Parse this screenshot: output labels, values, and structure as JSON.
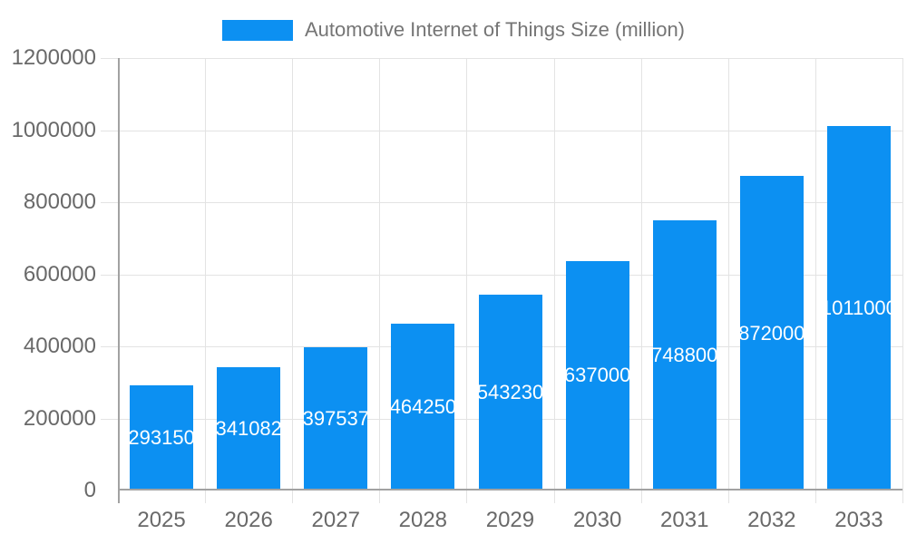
{
  "legend": {
    "label": "Automotive Internet of Things Size (million)"
  },
  "chart_data": {
    "type": "bar",
    "title": "Automotive Internet of Things Size (million)",
    "categories": [
      "2025",
      "2026",
      "2027",
      "2028",
      "2029",
      "2030",
      "2031",
      "2032",
      "2033"
    ],
    "series": [
      {
        "name": "Automotive Internet of Things Size (million)",
        "values": [
          293150,
          341082,
          397537,
          464250,
          543230,
          637000,
          748800,
          872000,
          1011000
        ]
      }
    ],
    "value_labels": [
      "293150",
      "341082",
      "397537",
      "464250",
      "543230",
      "637000",
      "748800",
      "872000",
      "1011000"
    ],
    "xlabel": "",
    "ylabel": "",
    "ylim": [
      0,
      1200000
    ],
    "yticks": [
      0,
      200000,
      400000,
      600000,
      800000,
      1000000,
      1200000
    ],
    "ytick_labels": [
      "0",
      "200000",
      "400000",
      "600000",
      "800000",
      "1000000",
      "1200000"
    ],
    "grid": true,
    "legend_position": "top",
    "value_label_position": "inside-center"
  },
  "colors": {
    "bar": "#0c90f2",
    "grid": "#e3e3e3",
    "axis": "#a2a2a2",
    "tick_text": "#696969",
    "legend_text": "#757575",
    "value_text": "#ffffff",
    "background": "#ffffff"
  }
}
